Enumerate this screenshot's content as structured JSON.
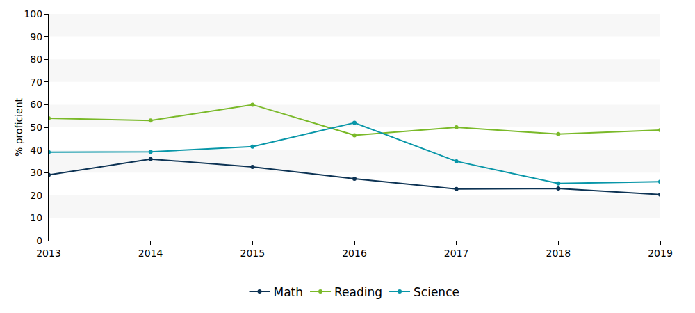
{
  "chart_data": {
    "type": "line",
    "y_label": "% proficient",
    "x": [
      2013,
      2014,
      2015,
      2016,
      2017,
      2018,
      2019
    ],
    "series": [
      {
        "name": "Math",
        "color": "#0d3354",
        "values": [
          29,
          36,
          32.5,
          27.3,
          22.8,
          23,
          20.3
        ]
      },
      {
        "name": "Reading",
        "color": "#7ab929",
        "values": [
          54,
          53,
          60,
          46.5,
          50,
          47,
          48.8
        ]
      },
      {
        "name": "Science",
        "color": "#0896a8",
        "values": [
          39,
          39.2,
          41.5,
          52,
          35,
          25.2,
          26
        ]
      }
    ],
    "xlim": [
      2013,
      2019
    ],
    "xticks": [
      2013,
      2014,
      2015,
      2016,
      2017,
      2018,
      2019
    ],
    "ylim": [
      0,
      100
    ],
    "yticks": [
      0,
      10,
      20,
      30,
      40,
      50,
      60,
      70,
      80,
      90,
      100
    ],
    "grid": true,
    "legend": "bottom",
    "marker": "circle",
    "line_style": "solid"
  }
}
